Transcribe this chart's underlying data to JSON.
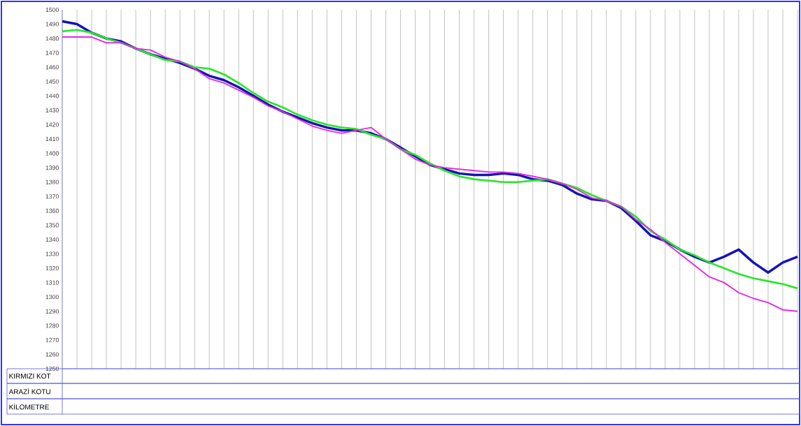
{
  "chart_data": {
    "type": "line",
    "categories": [
      null,
      null,
      null,
      null,
      null,
      null,
      null,
      null,
      null,
      null,
      null,
      null,
      null,
      null,
      null,
      null,
      null,
      null,
      null,
      null,
      null,
      null,
      null,
      null,
      null,
      null,
      null,
      null,
      null,
      null,
      null,
      null,
      null,
      null,
      null,
      null,
      null,
      null,
      null,
      null,
      null,
      null,
      null,
      null,
      null,
      null,
      null,
      null,
      null,
      null,
      null
    ],
    "series": [
      {
        "color": "#1414b4",
        "values": [
          1492,
          1490,
          1484,
          1480,
          1478,
          1473,
          1469,
          1466,
          1463,
          1459,
          1454,
          1451,
          1446,
          1440,
          1434,
          1429,
          1425,
          1421,
          1418,
          1416,
          1416,
          1414,
          1410,
          1404,
          1398,
          1392,
          1389,
          1386,
          1385,
          1385,
          1386,
          1385,
          1382,
          1381,
          1378,
          1372,
          1368,
          1367,
          1362,
          1353,
          1343,
          1339,
          1333,
          1328,
          1324,
          1328,
          1333,
          1324,
          1317,
          1324,
          1328
        ]
      },
      {
        "color": "#28e628",
        "values": [
          1485,
          1486,
          1484,
          1480,
          1477,
          1473,
          1469,
          1465,
          1464,
          1460,
          1459,
          1455,
          1449,
          1442,
          1436,
          1432,
          1427,
          1423,
          1420,
          1418,
          1417,
          1413,
          1410,
          1403,
          1399,
          1393,
          1388,
          1384,
          1382,
          1381,
          1380,
          1380,
          1381,
          1382,
          1379,
          1376,
          1371,
          1367,
          1363,
          1356,
          1346,
          1340,
          1333,
          1329,
          1324,
          1320,
          1316,
          1313,
          1311,
          1309,
          1306
        ]
      },
      {
        "color": "#e628e6",
        "values": [
          1481,
          1481,
          1481,
          1477,
          1477,
          1473,
          1472,
          1467,
          1464,
          1459,
          1452,
          1449,
          1444,
          1439,
          1433,
          1429,
          1424,
          1419,
          1416,
          1414,
          1416,
          1418,
          1410,
          1403,
          1396,
          1392,
          1390,
          1389,
          1388,
          1387,
          1387,
          1386,
          1384,
          1382,
          1379,
          1375,
          1369,
          1367,
          1363,
          1354,
          1347,
          1338,
          1330,
          1322,
          1314,
          1310,
          1303,
          1299,
          1296,
          1291,
          1290
        ]
      }
    ],
    "ylim": [
      1250,
      1500
    ],
    "yticks": [
      1250,
      1260,
      1270,
      1280,
      1290,
      1300,
      1310,
      1320,
      1330,
      1340,
      1350,
      1360,
      1370,
      1380,
      1390,
      1400,
      1410,
      1420,
      1430,
      1440,
      1450,
      1460,
      1470,
      1480,
      1490,
      1500
    ],
    "grid": "x",
    "tick_labels": "y",
    "marker": "none",
    "line_style": "solid",
    "legend": false,
    "annotations": [
      "KIRMIZI KOT",
      "ARAZİ KOTU",
      "KİLOMETRE"
    ]
  }
}
